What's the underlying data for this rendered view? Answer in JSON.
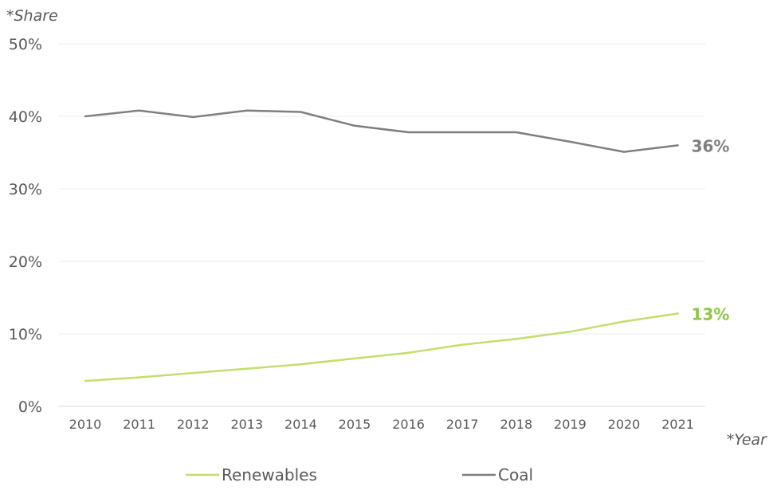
{
  "chart_data": {
    "type": "line",
    "ylabel": "*Share",
    "xlabel": "*Year",
    "ylim": [
      0,
      50
    ],
    "yticks": [
      "0%",
      "10%",
      "20%",
      "30%",
      "40%",
      "50%"
    ],
    "categories": [
      "2010",
      "2011",
      "2012",
      "2013",
      "2014",
      "2015",
      "2016",
      "2017",
      "2018",
      "2019",
      "2020",
      "2021"
    ],
    "grid": true,
    "legend_position": "bottom",
    "series": [
      {
        "name": "Renewables",
        "color": "#c5dd6e",
        "label_color": "#8cc63f",
        "values": [
          3.5,
          4.0,
          4.6,
          5.2,
          5.8,
          6.6,
          7.4,
          8.5,
          9.3,
          10.3,
          11.7,
          12.8
        ],
        "end_label": "13%"
      },
      {
        "name": "Coal",
        "color": "#7f7f7f",
        "label_color": "#7f7f7f",
        "values": [
          40.0,
          40.8,
          39.9,
          40.8,
          40.6,
          38.7,
          37.8,
          37.8,
          37.8,
          36.5,
          35.1,
          36.0
        ],
        "end_label": "36%"
      }
    ]
  }
}
